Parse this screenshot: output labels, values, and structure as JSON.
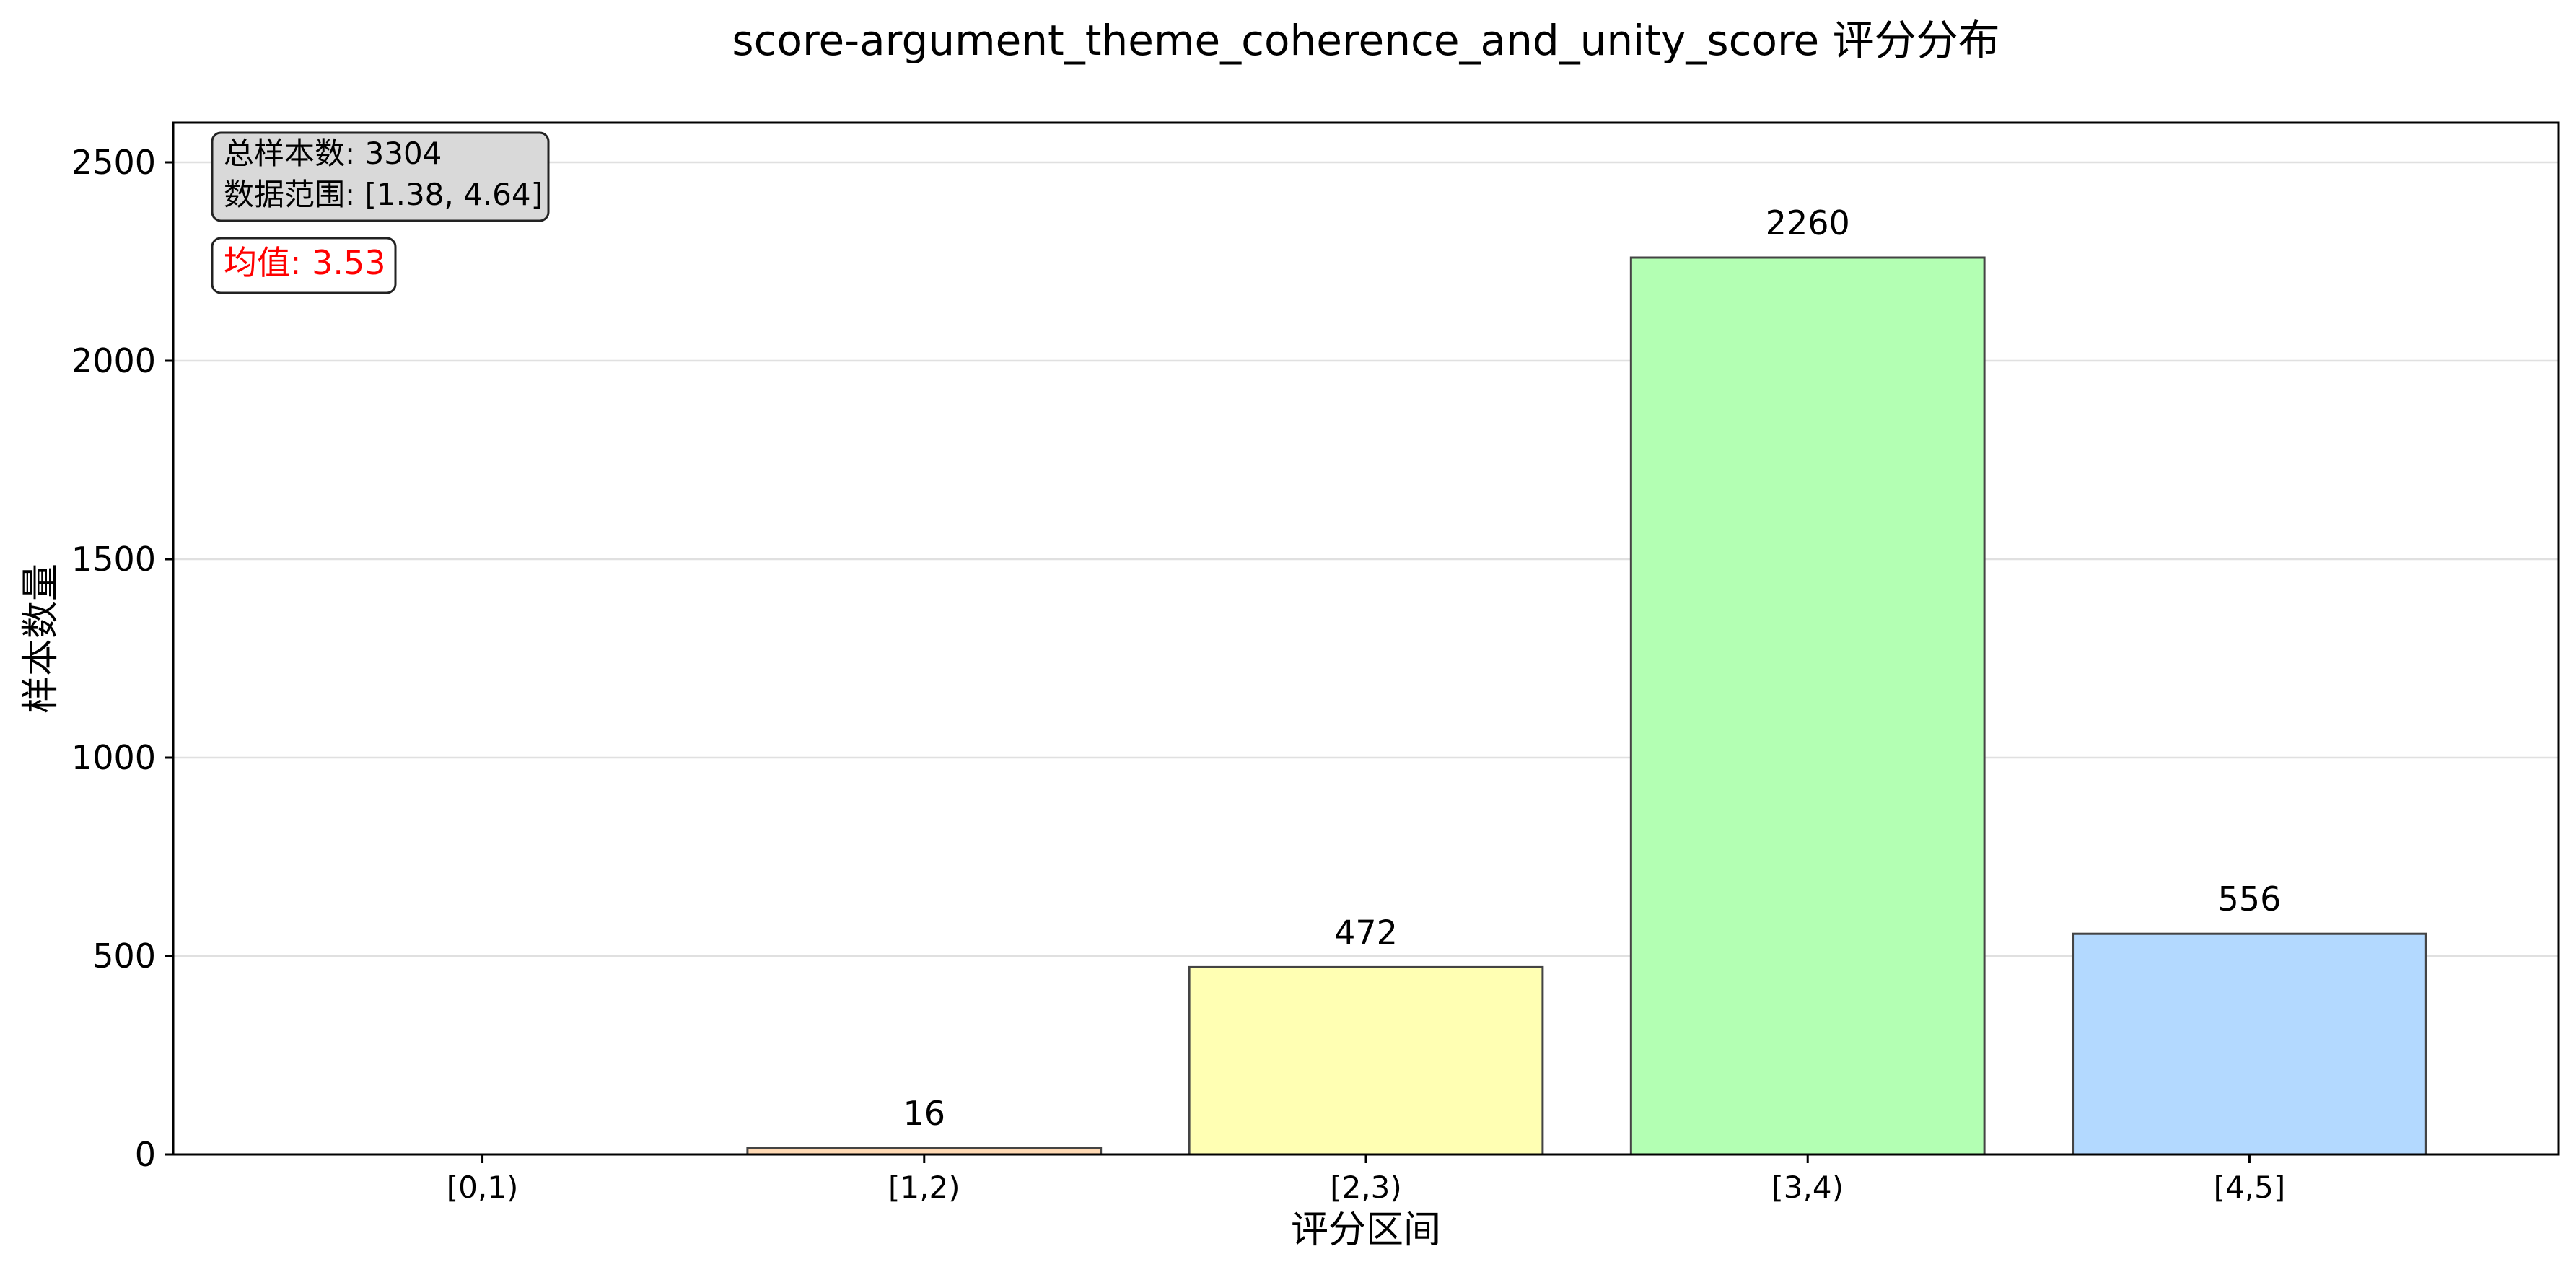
{
  "chart_data": {
    "type": "bar",
    "title": "score-argument_theme_coherence_and_unity_score 评分分布",
    "xlabel": "评分区间",
    "ylabel": "样本数量",
    "categories": [
      "[0,1)",
      "[1,2)",
      "[2,3)",
      "[3,4)",
      "[4,5]"
    ],
    "values": [
      0,
      16,
      472,
      2260,
      556
    ],
    "value_labels": [
      "",
      "16",
      "472",
      "2260",
      "556"
    ],
    "bar_colors": [
      "#ffb3b3",
      "#ffd9b3",
      "#ffffb3",
      "#b3ffb3",
      "#b3d9ff"
    ],
    "ylim": [
      0,
      2600
    ],
    "yticks": [
      0,
      500,
      1000,
      1500,
      2000,
      2500
    ],
    "grid": "horizontal",
    "stats_box": {
      "line1": "总样本数: 3304",
      "line2": "数据范围: [1.38, 4.64]"
    },
    "mean_box": {
      "text": "均值: 3.53",
      "color": "#ff0000"
    }
  }
}
